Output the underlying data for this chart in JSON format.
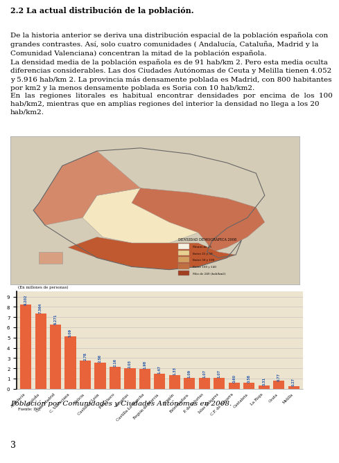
{
  "title_bold": "2.2 La actual distribución de la población.",
  "paragraph1": "De la historia anterior se deriva una distribución espacial de la población española con\ngrandes contrastes. Así, solo cuatro comunidades ( Andalucía, Cataluña, Madrid y la\nComunidad Valenciana) concentran la mitad de la población española.",
  "paragraph2": "La densidad media de la población española es de 91 hab/km 2. Pero esta media oculta\ndiferencias considerables. Las dos Ciudades Autónomas de Ceuta y Melilla tienen 4.052\ny 5.916 hab/km 2. La provincia más densamente poblada es Madrid, con 800 habitantes\npor km2 y la menos densamente poblada es Soria con 10 hab/km2.",
  "paragraph3": "En  las  regiones  litorales  es  habitual  encontrar  densidades  por  encima  de  los  100\nhab/km2, mientras que en amplias regiones del interior la densidad no llega a los 20\nhab/km2.",
  "chart_ylabel": "(En millones de personas)",
  "chart_source": "Fuente: INE",
  "chart_caption": "Población por Comunidades y Ciudades Autónomas en 2008.",
  "categories": [
    "Andalucía",
    "Cataluña",
    "C. de Madrid",
    "C. Valenciana",
    "Galicia",
    "Castilla y León",
    "País Vasco",
    "Canarias",
    "Castilla-La Mancha",
    "Región de Murcia",
    "Aragón",
    "Extremadura",
    "P. de Asturias",
    "Islas Baleares",
    "C.F. de Navarra",
    "Cantabria",
    "La Rioja",
    "Ceuta",
    "Melilla"
  ],
  "values": [
    8.2,
    7.36,
    6.27,
    5.09,
    2.78,
    2.56,
    2.16,
    2.03,
    1.98,
    1.47,
    1.33,
    1.09,
    1.07,
    1.07,
    0.6,
    0.58,
    0.31,
    0.77,
    0.27
  ],
  "value_labels": [
    "8.202",
    "7.364",
    "6.271",
    "5.09",
    "2.78",
    "2.56",
    "2.16",
    "2.03",
    "1.98",
    "1.47",
    "1.33",
    "1.09",
    "1.07",
    "1.07",
    "0.60",
    "0.58",
    "0.31",
    "0.77",
    "0.27"
  ],
  "bar_color": "#E8633A",
  "chart_bg": "#EDE4D0",
  "text_color": "#2B5BA8",
  "page_number": "3",
  "fig_bg": "#FFFFFF",
  "font_size_body": 7.5,
  "font_size_heading": 8.0
}
